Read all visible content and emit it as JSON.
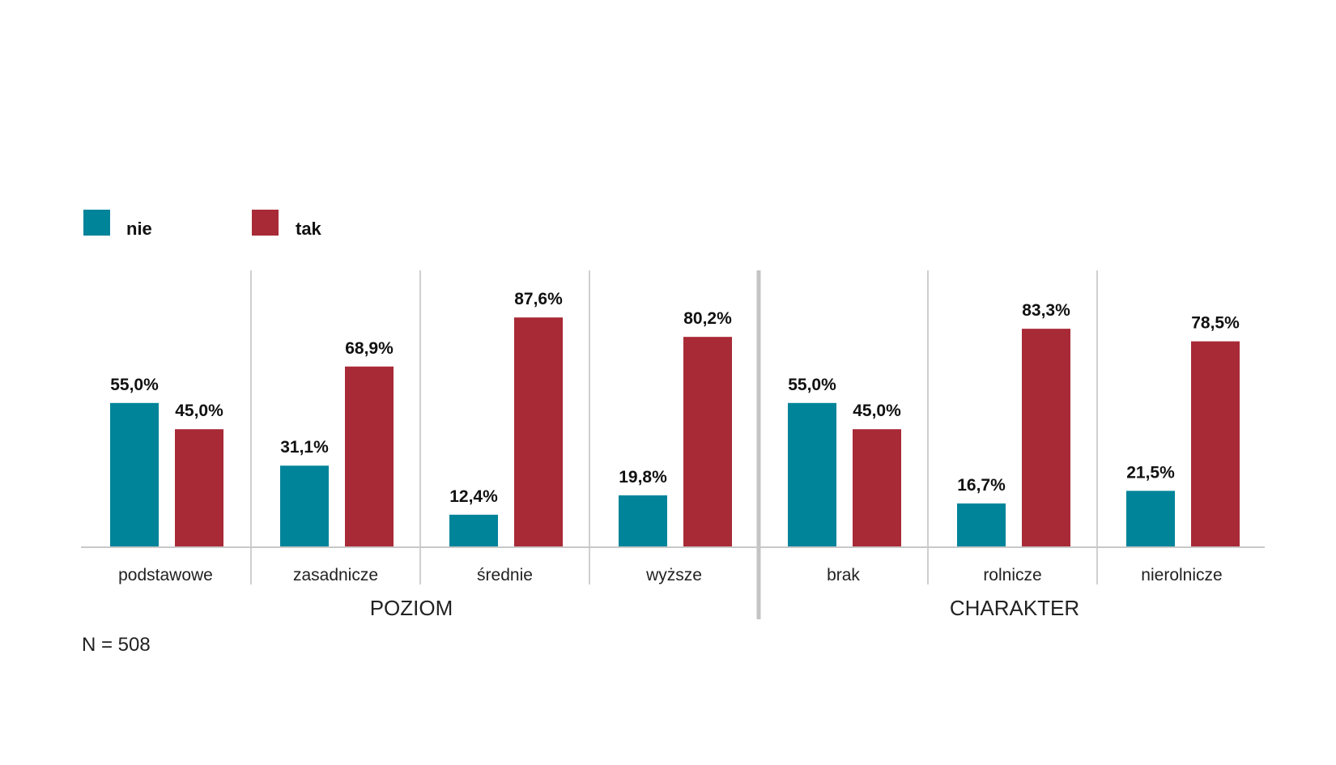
{
  "chart_data": {
    "type": "bar",
    "categories": [
      "podstawowe",
      "zasadnicze",
      "średnie",
      "wyższe",
      "brak",
      "rolnicze",
      "nierolnicze"
    ],
    "category_labels": [
      "podstawowe",
      "zasadnicze",
      "średnie",
      "wyższe",
      "brak",
      "rolnicze",
      "nierolnicze"
    ],
    "groups": [
      {
        "label": "POZIOM",
        "categories": [
          "podstawowe",
          "zasadnicze",
          "średnie",
          "wyższe"
        ]
      },
      {
        "label": "CHARAKTER",
        "categories": [
          "brak",
          "rolnicze",
          "nierolnicze"
        ]
      }
    ],
    "series": [
      {
        "name": "nie",
        "color": "#00849a",
        "values": [
          55.0,
          31.1,
          12.4,
          19.8,
          55.0,
          16.7,
          21.5
        ],
        "labels": [
          "55,0%",
          "31,1%",
          "12,4%",
          "19,8%",
          "55,0%",
          "16,7%",
          "21,5%"
        ]
      },
      {
        "name": "tak",
        "color": "#a82a36",
        "values": [
          45.0,
          68.9,
          87.6,
          80.2,
          45.0,
          83.3,
          78.5
        ],
        "labels": [
          "45,0%",
          "68,9%",
          "87,6%",
          "80,2%",
          "45,0%",
          "83,3%",
          "78,5%"
        ]
      }
    ],
    "ylim": [
      0,
      100
    ],
    "legend_position": "top-left",
    "grid": false,
    "note": "N = 508"
  }
}
